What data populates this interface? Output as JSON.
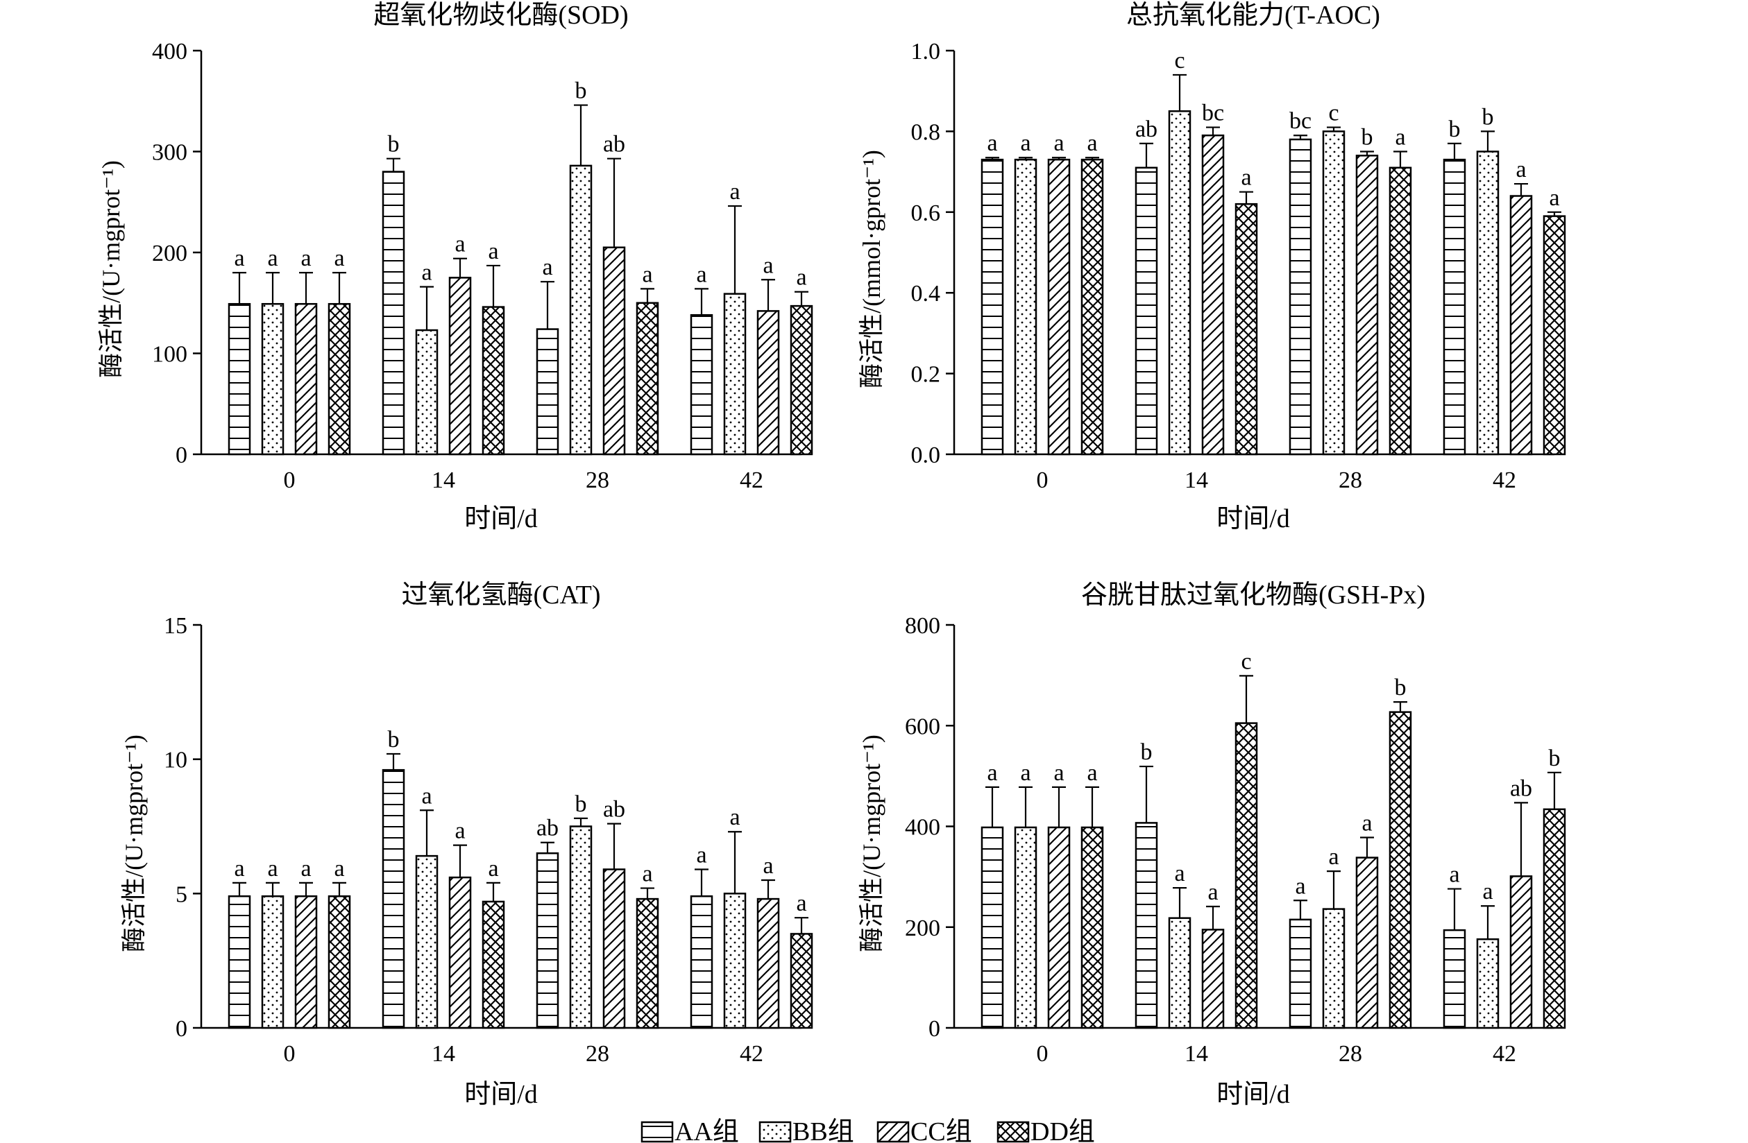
{
  "legend": [
    "AA组",
    "BB组",
    "CC组",
    "DD组"
  ],
  "chart_data": [
    {
      "type": "bar",
      "title": "超氧化物歧化酶(SOD)",
      "xlabel": "时间/d",
      "ylabel": "酶活性/(U·mgprot⁻¹)",
      "categories": [
        "0",
        "14",
        "28",
        "42"
      ],
      "ylim": [
        0,
        400
      ],
      "yticks": [
        "0",
        "100",
        "200",
        "300",
        "400"
      ],
      "series": [
        {
          "name": "AA组",
          "values": [
            149,
            280,
            124,
            138
          ],
          "errors": [
            31,
            13,
            47,
            26
          ],
          "letters": [
            "a",
            "b",
            "a",
            "a"
          ]
        },
        {
          "name": "BB组",
          "values": [
            149,
            123,
            286,
            159
          ],
          "errors": [
            31,
            43,
            60,
            87
          ],
          "letters": [
            "a",
            "a",
            "b",
            "a"
          ]
        },
        {
          "name": "CC组",
          "values": [
            149,
            175,
            205,
            142
          ],
          "errors": [
            31,
            19,
            88,
            31
          ],
          "letters": [
            "a",
            "a",
            "ab",
            "a"
          ]
        },
        {
          "name": "DD组",
          "values": [
            149,
            146,
            150,
            147
          ],
          "errors": [
            31,
            41,
            14,
            14
          ],
          "letters": [
            "a",
            "a",
            "a",
            "a"
          ]
        }
      ]
    },
    {
      "type": "bar",
      "title": "总抗氧化能力(T-AOC)",
      "xlabel": "时间/d",
      "ylabel": "酶活性/(mmol·gprot⁻¹)",
      "categories": [
        "0",
        "14",
        "28",
        "42"
      ],
      "ylim": [
        0,
        1.0
      ],
      "yticks": [
        "0.0",
        "0.2",
        "0.4",
        "0.6",
        "0.8",
        "1.0"
      ],
      "series": [
        {
          "name": "AA组",
          "values": [
            0.73,
            0.71,
            0.78,
            0.73
          ],
          "errors": [
            0.005,
            0.06,
            0.01,
            0.04
          ],
          "letters": [
            "a",
            "ab",
            "bc",
            "b"
          ]
        },
        {
          "name": "BB组",
          "values": [
            0.73,
            0.85,
            0.8,
            0.75
          ],
          "errors": [
            0.005,
            0.09,
            0.01,
            0.05
          ],
          "letters": [
            "a",
            "c",
            "c",
            "b"
          ]
        },
        {
          "name": "CC组",
          "values": [
            0.73,
            0.79,
            0.74,
            0.64
          ],
          "errors": [
            0.005,
            0.02,
            0.01,
            0.03
          ],
          "letters": [
            "a",
            "bc",
            "b",
            "a"
          ]
        },
        {
          "name": "DD组",
          "values": [
            0.73,
            0.62,
            0.71,
            0.59
          ],
          "errors": [
            0.005,
            0.03,
            0.04,
            0.01
          ],
          "letters": [
            "a",
            "a",
            "a",
            "a"
          ]
        }
      ]
    },
    {
      "type": "bar",
      "title": "过氧化氢酶(CAT)",
      "xlabel": "时间/d",
      "ylabel": "酶活性/(U·mgprot⁻¹)",
      "categories": [
        "0",
        "14",
        "28",
        "42"
      ],
      "ylim": [
        0,
        15
      ],
      "yticks": [
        "0",
        "5",
        "10",
        "15"
      ],
      "series": [
        {
          "name": "AA组",
          "values": [
            4.9,
            9.6,
            6.5,
            4.9
          ],
          "errors": [
            0.5,
            0.6,
            0.4,
            1.0
          ],
          "letters": [
            "a",
            "b",
            "ab",
            "a"
          ]
        },
        {
          "name": "BB组",
          "values": [
            4.9,
            6.4,
            7.5,
            5.0
          ],
          "errors": [
            0.5,
            1.7,
            0.3,
            2.3
          ],
          "letters": [
            "a",
            "a",
            "b",
            "a"
          ]
        },
        {
          "name": "CC组",
          "values": [
            4.9,
            5.6,
            5.9,
            4.8
          ],
          "errors": [
            0.5,
            1.2,
            1.7,
            0.7
          ],
          "letters": [
            "a",
            "a",
            "ab",
            "a"
          ]
        },
        {
          "name": "DD组",
          "values": [
            4.9,
            4.7,
            4.8,
            3.5
          ],
          "errors": [
            0.5,
            0.7,
            0.4,
            0.6
          ],
          "letters": [
            "a",
            "a",
            "a",
            "a"
          ]
        }
      ]
    },
    {
      "type": "bar",
      "title": "谷胱甘肽过氧化物酶(GSH-Px)",
      "xlabel": "时间/d",
      "ylabel": "酶活性/(U·mgprot⁻¹)",
      "categories": [
        "0",
        "14",
        "28",
        "42"
      ],
      "ylim": [
        0,
        800
      ],
      "yticks": [
        "0",
        "200",
        "400",
        "600",
        "800"
      ],
      "series": [
        {
          "name": "AA组",
          "values": [
            398,
            407,
            215,
            194
          ],
          "errors": [
            80,
            112,
            38,
            82
          ],
          "letters": [
            "a",
            "b",
            "a",
            "a"
          ]
        },
        {
          "name": "BB组",
          "values": [
            398,
            218,
            236,
            176
          ],
          "errors": [
            80,
            60,
            75,
            66
          ],
          "letters": [
            "a",
            "a",
            "a",
            "a"
          ]
        },
        {
          "name": "CC组",
          "values": [
            398,
            195,
            338,
            301
          ],
          "errors": [
            80,
            46,
            40,
            146
          ],
          "letters": [
            "a",
            "a",
            "a",
            "ab"
          ]
        },
        {
          "name": "DD组",
          "values": [
            398,
            605,
            627,
            434
          ],
          "errors": [
            80,
            94,
            20,
            73
          ],
          "letters": [
            "a",
            "c",
            "b",
            "b"
          ]
        }
      ]
    }
  ]
}
